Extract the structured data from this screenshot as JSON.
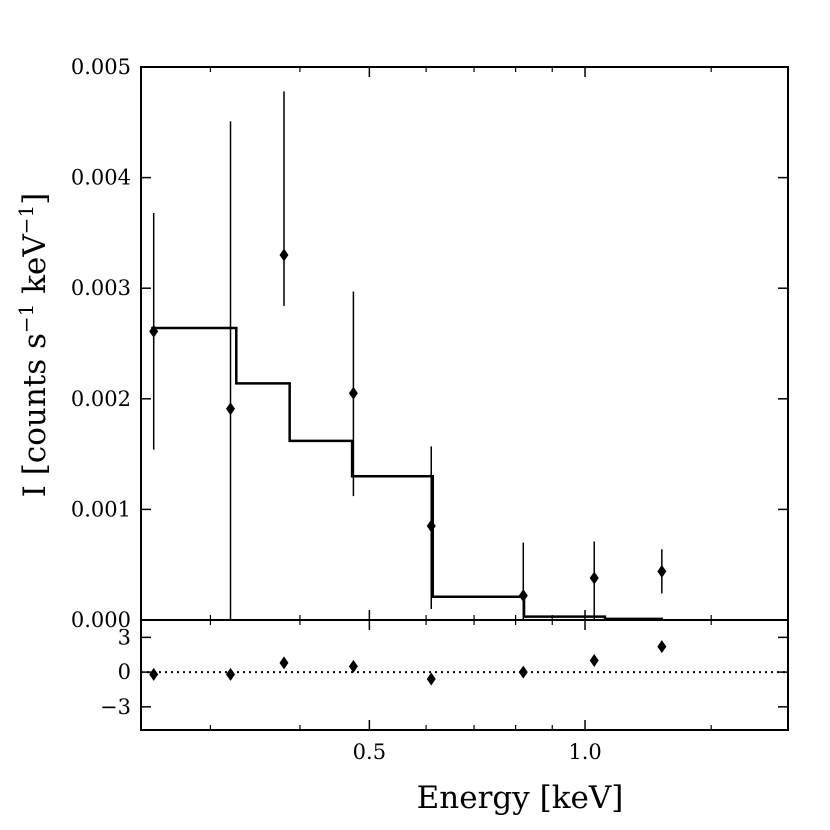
{
  "chart_data": {
    "type": "step+errorbar",
    "xscale": "log",
    "xlim": [
      0.24,
      1.92
    ],
    "xlabel": "Energy [keV]",
    "top_panel": {
      "ylabel": "I [counts s⁻¹ keV⁻¹]",
      "ylabel_parts": {
        "base": "I [counts s",
        "sup1": "−1",
        "mid": " keV",
        "sup2": "−1",
        "end": "]"
      },
      "ylim": [
        0,
        0.005
      ],
      "yticks": [
        0.0,
        0.001,
        0.002,
        0.003,
        0.004,
        0.005
      ],
      "ytick_labels": [
        "0.000",
        "0.001",
        "0.002",
        "0.003",
        "0.004",
        "0.005"
      ],
      "model_steps": [
        {
          "x0": 0.248,
          "x1": 0.326,
          "y": 0.00264
        },
        {
          "x0": 0.326,
          "x1": 0.387,
          "y": 0.00214
        },
        {
          "x0": 0.387,
          "x1": 0.473,
          "y": 0.00162
        },
        {
          "x0": 0.473,
          "x1": 0.613,
          "y": 0.0013
        },
        {
          "x0": 0.613,
          "x1": 0.822,
          "y": 0.00021
        },
        {
          "x0": 0.822,
          "x1": 1.066,
          "y": 3e-05
        },
        {
          "x0": 1.066,
          "x1": 1.285,
          "y": 1e-05
        }
      ],
      "data_points": [
        {
          "x": 0.25,
          "y": 0.00261,
          "ylo": 0.00154,
          "yhi": 0.00368
        },
        {
          "x": 0.32,
          "y": 0.00191,
          "ylo": 0.0,
          "yhi": 0.00451
        },
        {
          "x": 0.38,
          "y": 0.0033,
          "ylo": 0.00284,
          "yhi": 0.00478
        },
        {
          "x": 0.475,
          "y": 0.00205,
          "ylo": 0.00112,
          "yhi": 0.00297
        },
        {
          "x": 0.61,
          "y": 0.00085,
          "ylo": 0.0001,
          "yhi": 0.00157
        },
        {
          "x": 0.82,
          "y": 0.00022,
          "ylo": 0.0,
          "yhi": 0.0007
        },
        {
          "x": 1.03,
          "y": 0.00038,
          "ylo": 0.0,
          "yhi": 0.00071
        },
        {
          "x": 1.28,
          "y": 0.00044,
          "ylo": 0.00024,
          "yhi": 0.00064
        }
      ]
    },
    "bottom_panel": {
      "ylim": [
        -5,
        4.5
      ],
      "yticks": [
        3,
        0,
        -3
      ],
      "ytick_labels": [
        "3",
        "0",
        "−3"
      ],
      "zero_line": "dotted",
      "residuals": [
        {
          "x": 0.25,
          "y": -0.2
        },
        {
          "x": 0.32,
          "y": -0.2
        },
        {
          "x": 0.38,
          "y": 0.8
        },
        {
          "x": 0.475,
          "y": 0.5
        },
        {
          "x": 0.61,
          "y": -0.6
        },
        {
          "x": 0.82,
          "y": 0.0
        },
        {
          "x": 1.03,
          "y": 1.0
        },
        {
          "x": 1.28,
          "y": 2.2
        }
      ]
    },
    "xticks_major": [
      0.5,
      1.0
    ],
    "xtick_labels": [
      "0.5",
      "1.0"
    ],
    "xticks_minor": [
      0.3,
      0.4,
      0.6,
      0.7,
      0.8,
      0.9,
      1.5
    ]
  }
}
